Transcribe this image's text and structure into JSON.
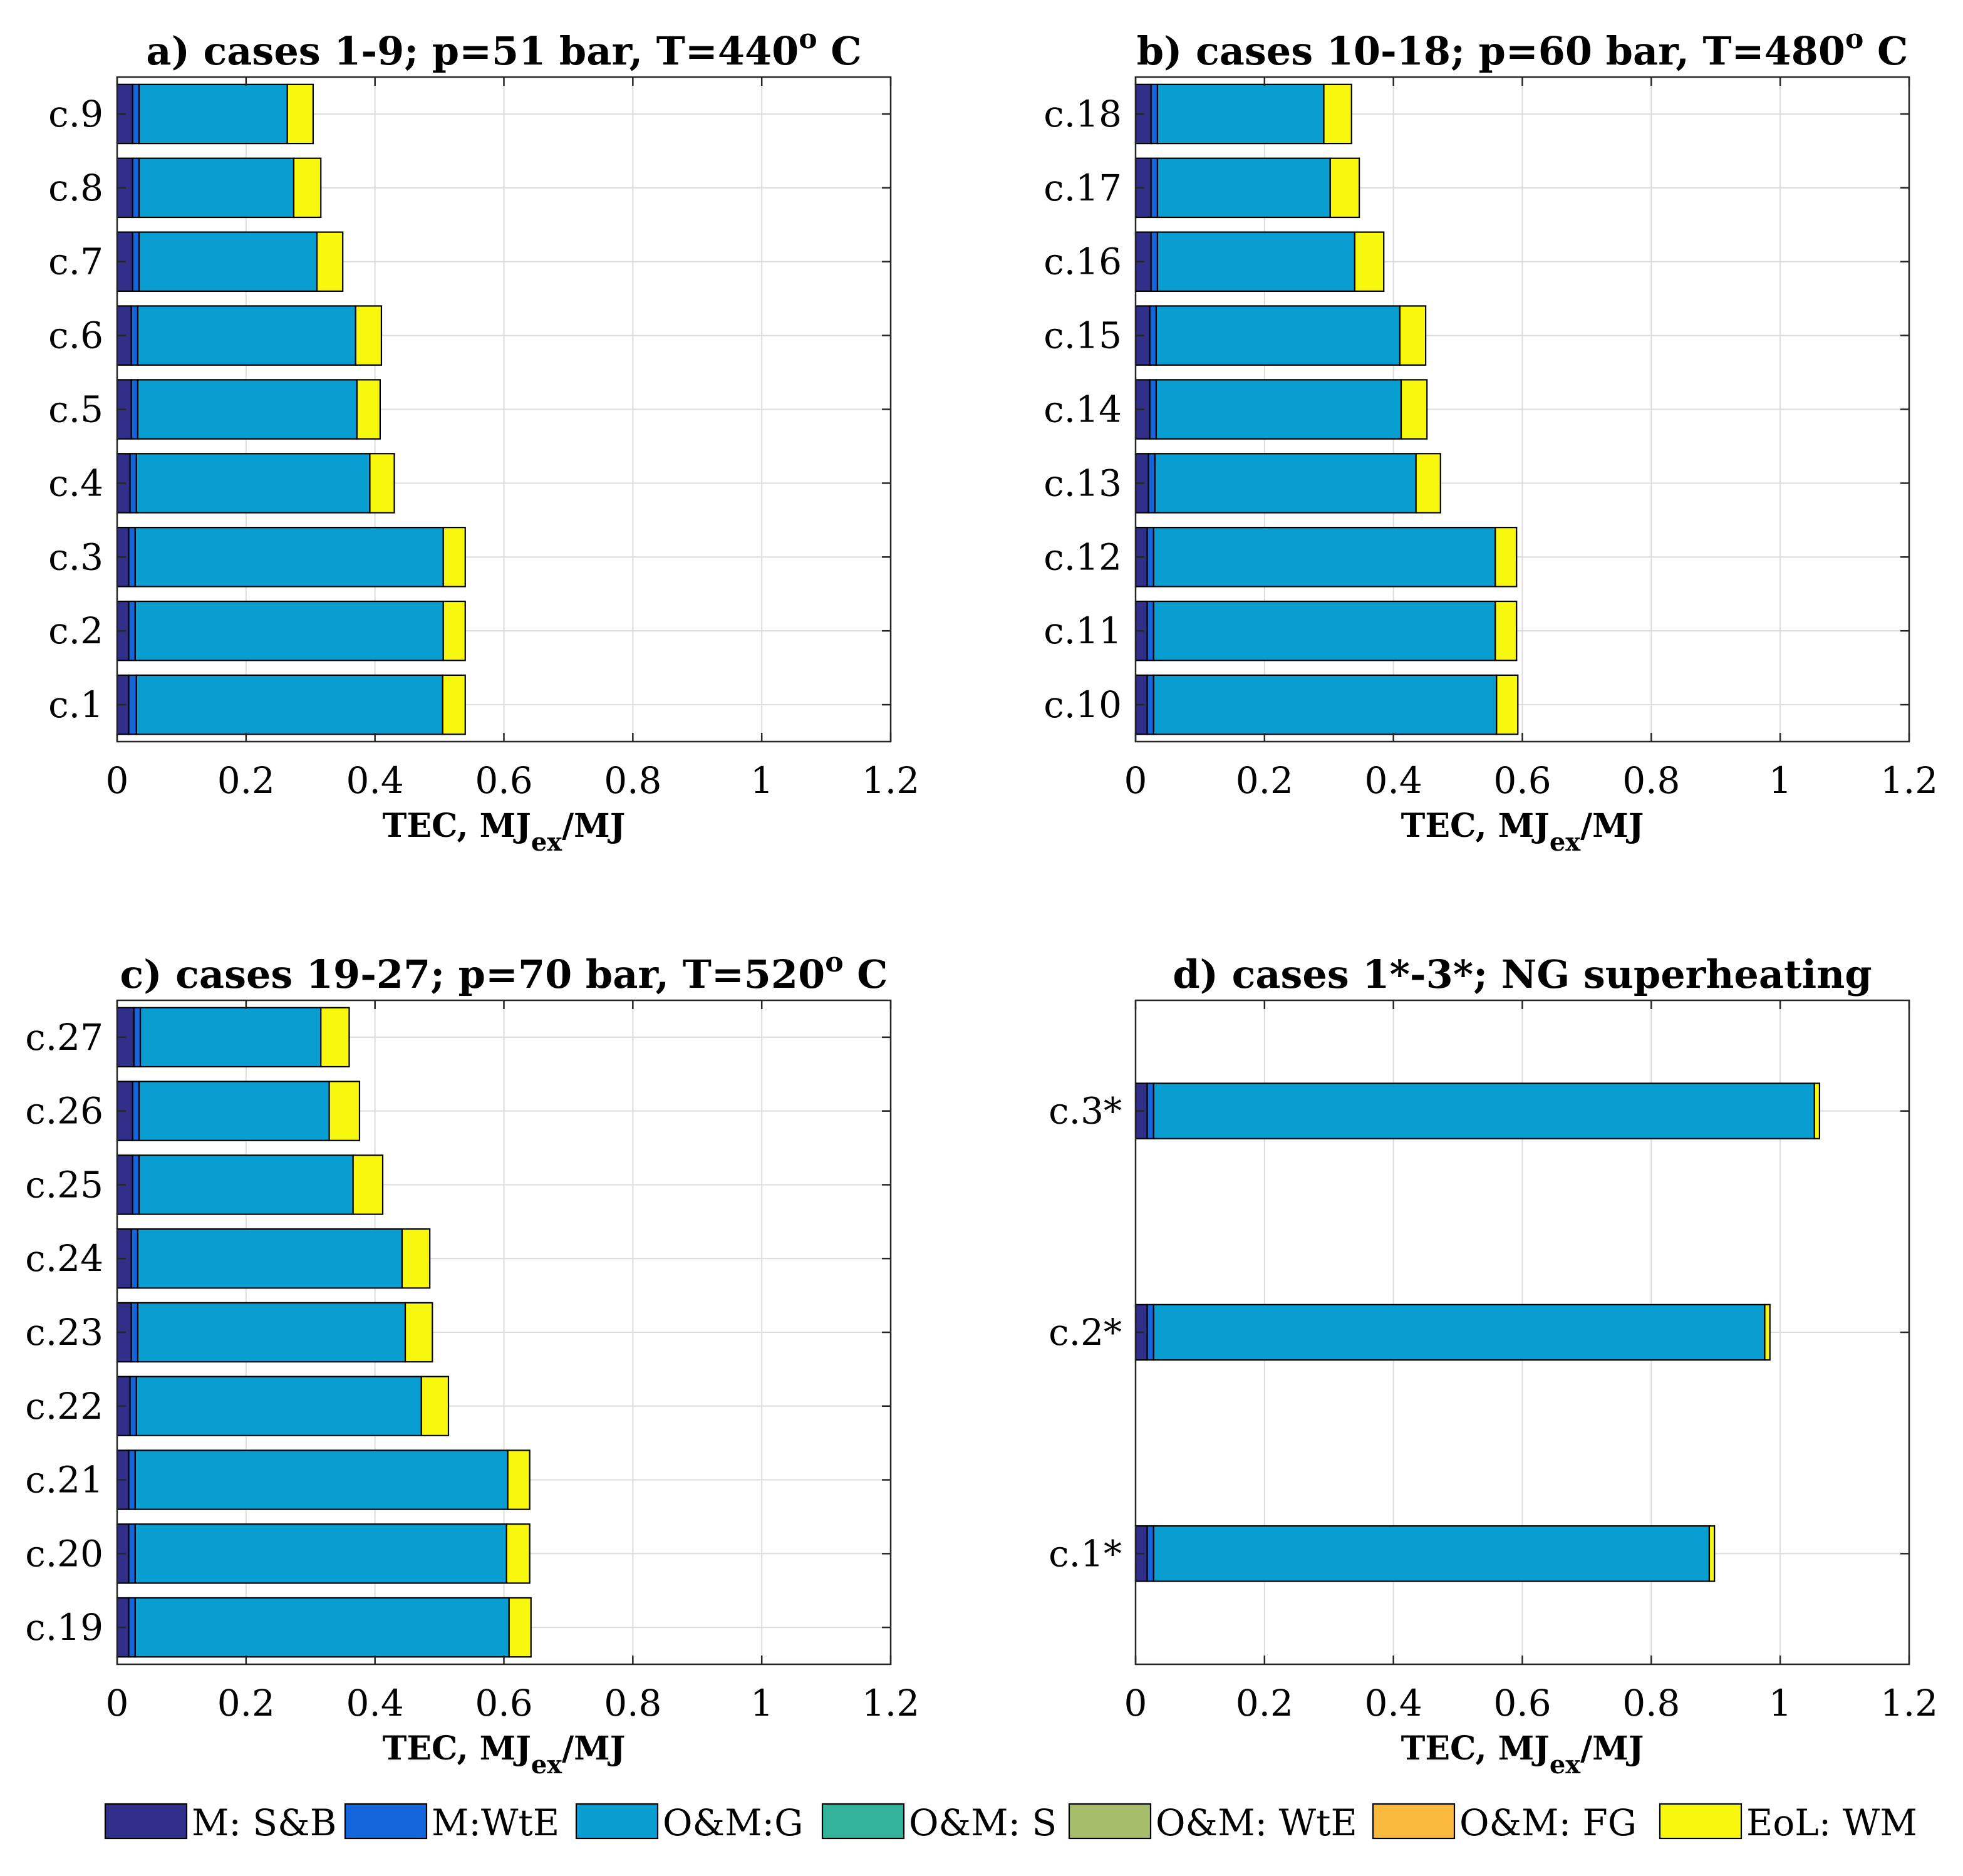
{
  "chart_data": [
    {
      "type": "bar",
      "orientation": "horizontal",
      "stacked": true,
      "title": "a) cases 1-9; p=51 bar, T=440",
      "title_superscript": "o",
      "title_suffix": " C",
      "xlabel": "TEC, MJ",
      "xlabel_subscript": "ex",
      "xlabel_suffix": "/MJ",
      "xlim": [
        0,
        1.2
      ],
      "xticks": [
        "0",
        "0.2",
        "0.4",
        "0.6",
        "0.8",
        "1",
        "1.2"
      ],
      "grid": true,
      "categories": [
        "c.1",
        "c.2",
        "c.3",
        "c.4",
        "c.5",
        "c.6",
        "c.7",
        "c.8",
        "c.9"
      ],
      "series": [
        {
          "name": "M: S&B",
          "values": [
            0.018,
            0.018,
            0.018,
            0.02,
            0.022,
            0.022,
            0.024,
            0.024,
            0.024
          ]
        },
        {
          "name": "M:WtE",
          "values": [
            0.012,
            0.01,
            0.01,
            0.01,
            0.01,
            0.01,
            0.01,
            0.01,
            0.01
          ]
        },
        {
          "name": "O&M:G",
          "values": [
            0.475,
            0.478,
            0.478,
            0.362,
            0.34,
            0.338,
            0.276,
            0.24,
            0.23
          ]
        },
        {
          "name": "O&M: S",
          "values": [
            0,
            0,
            0,
            0,
            0,
            0,
            0,
            0,
            0
          ]
        },
        {
          "name": "O&M: WtE",
          "values": [
            0,
            0,
            0,
            0,
            0,
            0,
            0,
            0,
            0
          ]
        },
        {
          "name": "O&M: FG",
          "values": [
            0,
            0,
            0,
            0,
            0,
            0,
            0,
            0,
            0
          ]
        },
        {
          "name": "EoL: WM",
          "values": [
            0.035,
            0.034,
            0.034,
            0.038,
            0.036,
            0.04,
            0.04,
            0.042,
            0.04
          ]
        }
      ]
    },
    {
      "type": "bar",
      "orientation": "horizontal",
      "stacked": true,
      "title": "b) cases 10-18; p=60 bar, T=480",
      "title_superscript": "o",
      "title_suffix": " C",
      "xlabel": "TEC, MJ",
      "xlabel_subscript": "ex",
      "xlabel_suffix": "/MJ",
      "xlim": [
        0,
        1.2
      ],
      "xticks": [
        "0",
        "0.2",
        "0.4",
        "0.6",
        "0.8",
        "1",
        "1.2"
      ],
      "grid": true,
      "categories": [
        "c.10",
        "c.11",
        "c.12",
        "c.13",
        "c.14",
        "c.15",
        "c.16",
        "c.17",
        "c.18"
      ],
      "series": [
        {
          "name": "M: S&B",
          "values": [
            0.018,
            0.018,
            0.018,
            0.02,
            0.022,
            0.022,
            0.024,
            0.024,
            0.024
          ]
        },
        {
          "name": "M:WtE",
          "values": [
            0.01,
            0.01,
            0.01,
            0.01,
            0.01,
            0.01,
            0.01,
            0.01,
            0.01
          ]
        },
        {
          "name": "O&M:G",
          "values": [
            0.532,
            0.53,
            0.53,
            0.405,
            0.38,
            0.378,
            0.306,
            0.268,
            0.258
          ]
        },
        {
          "name": "O&M: S",
          "values": [
            0,
            0,
            0,
            0,
            0,
            0,
            0,
            0,
            0
          ]
        },
        {
          "name": "O&M: WtE",
          "values": [
            0,
            0,
            0,
            0,
            0,
            0,
            0,
            0,
            0
          ]
        },
        {
          "name": "O&M: FG",
          "values": [
            0,
            0,
            0,
            0,
            0,
            0,
            0,
            0,
            0
          ]
        },
        {
          "name": "EoL: WM",
          "values": [
            0.033,
            0.033,
            0.033,
            0.038,
            0.04,
            0.04,
            0.045,
            0.045,
            0.043
          ]
        }
      ]
    },
    {
      "type": "bar",
      "orientation": "horizontal",
      "stacked": true,
      "title": "c) cases 19-27; p=70 bar, T=520",
      "title_superscript": "o",
      "title_suffix": " C",
      "xlabel": "TEC, MJ",
      "xlabel_subscript": "ex",
      "xlabel_suffix": "/MJ",
      "xlim": [
        0,
        1.2
      ],
      "xticks": [
        "0",
        "0.2",
        "0.4",
        "0.6",
        "0.8",
        "1",
        "1.2"
      ],
      "grid": true,
      "categories": [
        "c.19",
        "c.20",
        "c.21",
        "c.22",
        "c.23",
        "c.24",
        "c.25",
        "c.26",
        "c.27"
      ],
      "series": [
        {
          "name": "M: S&B",
          "values": [
            0.018,
            0.018,
            0.018,
            0.02,
            0.022,
            0.022,
            0.024,
            0.024,
            0.026
          ]
        },
        {
          "name": "M:WtE",
          "values": [
            0.01,
            0.01,
            0.01,
            0.01,
            0.01,
            0.01,
            0.01,
            0.01,
            0.01
          ]
        },
        {
          "name": "O&M:G",
          "values": [
            0.58,
            0.576,
            0.578,
            0.442,
            0.415,
            0.41,
            0.332,
            0.295,
            0.28
          ]
        },
        {
          "name": "O&M: S",
          "values": [
            0,
            0,
            0,
            0,
            0,
            0,
            0,
            0,
            0
          ]
        },
        {
          "name": "O&M: WtE",
          "values": [
            0,
            0,
            0,
            0,
            0,
            0,
            0,
            0,
            0
          ]
        },
        {
          "name": "O&M: FG",
          "values": [
            0,
            0,
            0,
            0,
            0,
            0,
            0,
            0,
            0
          ]
        },
        {
          "name": "EoL: WM",
          "values": [
            0.034,
            0.036,
            0.034,
            0.042,
            0.042,
            0.043,
            0.046,
            0.047,
            0.044
          ]
        }
      ]
    },
    {
      "type": "bar",
      "orientation": "horizontal",
      "stacked": true,
      "title": "d) cases 1*-3*; NG superheating",
      "xlabel": "TEC, MJ",
      "xlabel_subscript": "ex",
      "xlabel_suffix": "/MJ",
      "xlim": [
        0,
        1.2
      ],
      "xticks": [
        "0",
        "0.2",
        "0.4",
        "0.6",
        "0.8",
        "1",
        "1.2"
      ],
      "grid": true,
      "categories": [
        "c.1*",
        "c.2*",
        "c.3*"
      ],
      "series": [
        {
          "name": "M: S&B",
          "values": [
            0.018,
            0.018,
            0.018
          ]
        },
        {
          "name": "M:WtE",
          "values": [
            0.01,
            0.01,
            0.01
          ]
        },
        {
          "name": "O&M:G",
          "values": [
            0.862,
            0.948,
            1.025
          ]
        },
        {
          "name": "O&M: S",
          "values": [
            0,
            0,
            0
          ]
        },
        {
          "name": "O&M: WtE",
          "values": [
            0,
            0,
            0
          ]
        },
        {
          "name": "O&M: FG",
          "values": [
            0,
            0,
            0
          ]
        },
        {
          "name": "EoL: WM",
          "values": [
            0.008,
            0.008,
            0.008
          ]
        }
      ]
    }
  ],
  "legend": {
    "placement": "bottom",
    "items": [
      {
        "label": "M: S&B",
        "color": "#312f8a"
      },
      {
        "label": "M:WtE",
        "color": "#1466dc"
      },
      {
        "label": "O&M:G",
        "color": "#089ed1"
      },
      {
        "label": "O&M: S",
        "color": "#33b49a"
      },
      {
        "label": "O&M: WtE",
        "color": "#a6bd6c"
      },
      {
        "label": "O&M: FG",
        "color": "#fbba3d"
      },
      {
        "label": "EoL: WM",
        "color": "#f8f80e"
      }
    ]
  }
}
